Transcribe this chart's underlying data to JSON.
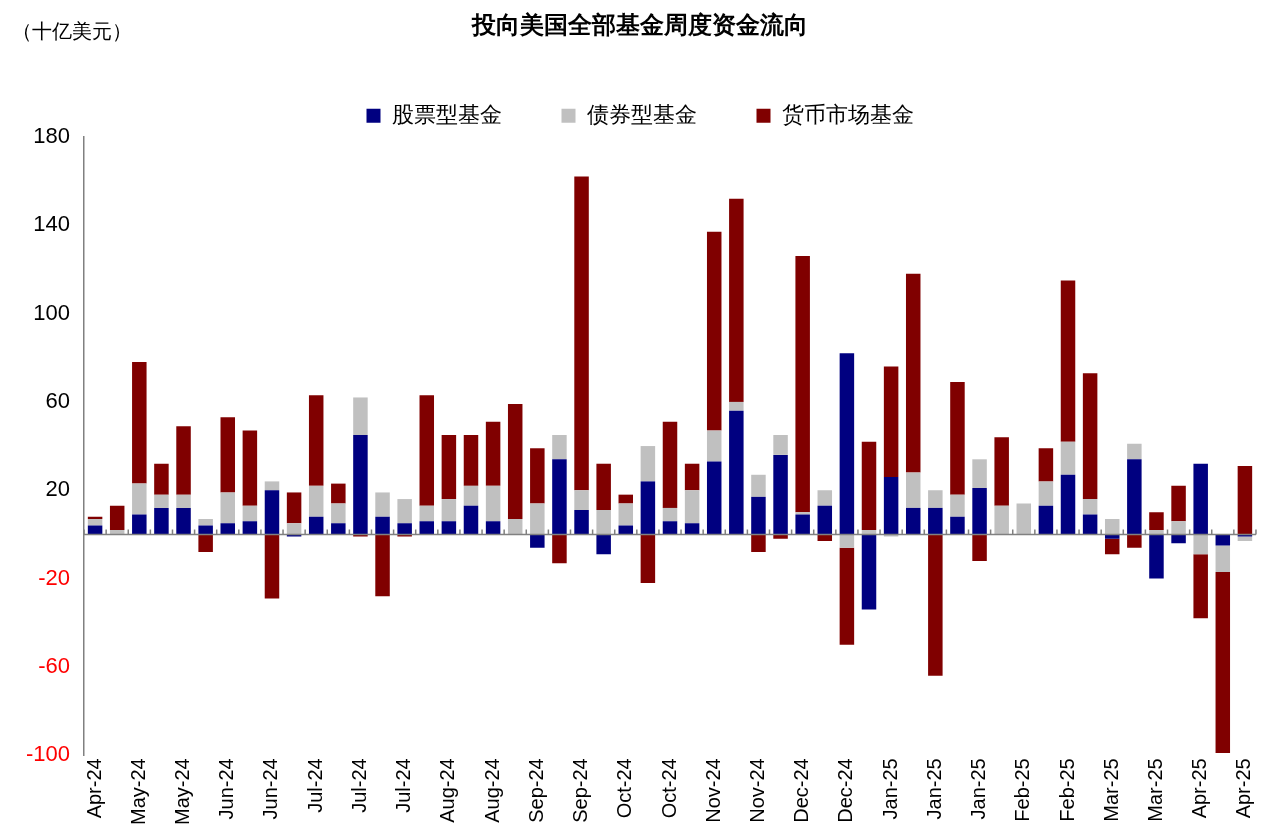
{
  "chart_data": {
    "type": "bar",
    "title": "投向美国全部基金周度资金流向",
    "ylabel": "（十亿美元）",
    "stacked": true,
    "legend": "top",
    "grid": false,
    "categories": [
      "Apr-24",
      null,
      "May-24",
      null,
      "May-24",
      null,
      "Jun-24",
      null,
      "Jun-24",
      null,
      "Jul-24",
      null,
      "Jul-24",
      null,
      "Jul-24",
      null,
      "Aug-24",
      null,
      "Aug-24",
      null,
      "Sep-24",
      null,
      "Sep-24",
      null,
      "Oct-24",
      null,
      "Oct-24",
      null,
      "Nov-24",
      null,
      "Nov-24",
      null,
      "Dec-24",
      null,
      "Dec-24",
      null,
      "Jan-25",
      null,
      "Jan-25",
      null,
      "Jan-25",
      null,
      "Feb-25",
      null,
      "Feb-25",
      null,
      "Mar-25",
      null,
      "Mar-25",
      null,
      "Apr-25",
      null,
      "Apr-25"
    ],
    "series": [
      {
        "name": "股票型基金",
        "color": "#000080",
        "values": [
          4,
          0,
          9,
          12,
          12,
          4,
          5,
          6,
          20,
          -1,
          8,
          5,
          45,
          8,
          5,
          6,
          6,
          13,
          6,
          0,
          -6,
          34,
          11,
          -9,
          4,
          24,
          6,
          5,
          33,
          56,
          17,
          36,
          9,
          13,
          82,
          -34,
          26,
          12,
          12,
          8,
          21,
          0,
          0,
          13,
          27,
          9,
          -2,
          34,
          -20,
          -4,
          32,
          -5,
          -1
        ]
      },
      {
        "name": "债券型基金",
        "color": "#c0c0c0",
        "values": [
          3,
          2,
          14,
          6,
          6,
          3,
          14,
          7,
          4,
          5,
          14,
          9,
          17,
          11,
          11,
          7,
          10,
          9,
          16,
          7,
          14,
          11,
          9,
          11,
          10,
          16,
          6,
          15,
          14,
          4,
          10,
          9,
          1,
          7,
          -6,
          2,
          -1,
          16,
          8,
          10,
          13,
          13,
          14,
          11,
          15,
          7,
          7,
          7,
          2,
          6,
          -9,
          -12,
          -2
        ]
      },
      {
        "name": "货币市场基金",
        "color": "#800000",
        "values": [
          1,
          11,
          55,
          14,
          31,
          -8,
          34,
          34,
          -29,
          14,
          41,
          9,
          -1,
          -28,
          -1,
          50,
          29,
          23,
          29,
          52,
          25,
          -13,
          142,
          21,
          4,
          -22,
          39,
          12,
          90,
          92,
          -8,
          -2,
          116,
          -3,
          -44,
          40,
          50,
          90,
          -64,
          51,
          -12,
          31,
          0,
          15,
          73,
          57,
          -7,
          -6,
          8,
          16,
          -29,
          -82,
          31
        ]
      }
    ],
    "ylim": [
      -100,
      180
    ],
    "yticks": [
      -100,
      -60,
      -20,
      20,
      60,
      100,
      140,
      180
    ],
    "ref_lines": [
      {
        "axis": "y",
        "value": 0,
        "color": "#808080"
      }
    ]
  }
}
